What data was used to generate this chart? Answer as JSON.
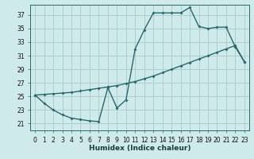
{
  "xlabel": "Humidex (Indice chaleur)",
  "bg_color": "#ceeaea",
  "line_color": "#2a6868",
  "grid_color": "#aacfcf",
  "xlim": [
    -0.5,
    23.5
  ],
  "ylim": [
    20.0,
    38.5
  ],
  "yticks": [
    21,
    23,
    25,
    27,
    29,
    31,
    33,
    35,
    37
  ],
  "xticks": [
    0,
    1,
    2,
    3,
    4,
    5,
    6,
    7,
    8,
    9,
    10,
    11,
    12,
    13,
    14,
    15,
    16,
    17,
    18,
    19,
    20,
    21,
    22,
    23
  ],
  "line1_x": [
    0,
    1,
    2,
    3,
    4,
    5,
    6,
    7,
    8,
    9,
    10,
    11,
    12,
    13,
    14,
    15,
    16,
    17,
    18,
    19,
    20,
    21,
    22,
    23
  ],
  "line1_y": [
    25.2,
    24.0,
    23.0,
    22.3,
    21.8,
    21.6,
    21.4,
    21.3,
    26.3,
    23.3,
    24.5,
    32.0,
    34.8,
    37.3,
    37.3,
    37.3,
    37.3,
    38.1,
    35.3,
    35.0,
    35.2,
    35.2,
    32.3,
    30.1
  ],
  "line2_x": [
    0,
    1,
    2,
    3,
    4,
    5,
    6,
    7,
    8,
    9,
    10,
    11,
    12,
    13,
    14,
    15,
    16,
    17,
    18,
    19,
    20,
    21,
    22,
    23
  ],
  "line2_y": [
    25.2,
    25.3,
    25.4,
    25.5,
    25.6,
    25.8,
    26.0,
    26.2,
    26.4,
    26.6,
    26.9,
    27.2,
    27.6,
    28.0,
    28.5,
    29.0,
    29.5,
    30.0,
    30.5,
    31.0,
    31.5,
    32.0,
    32.5,
    30.1
  ]
}
